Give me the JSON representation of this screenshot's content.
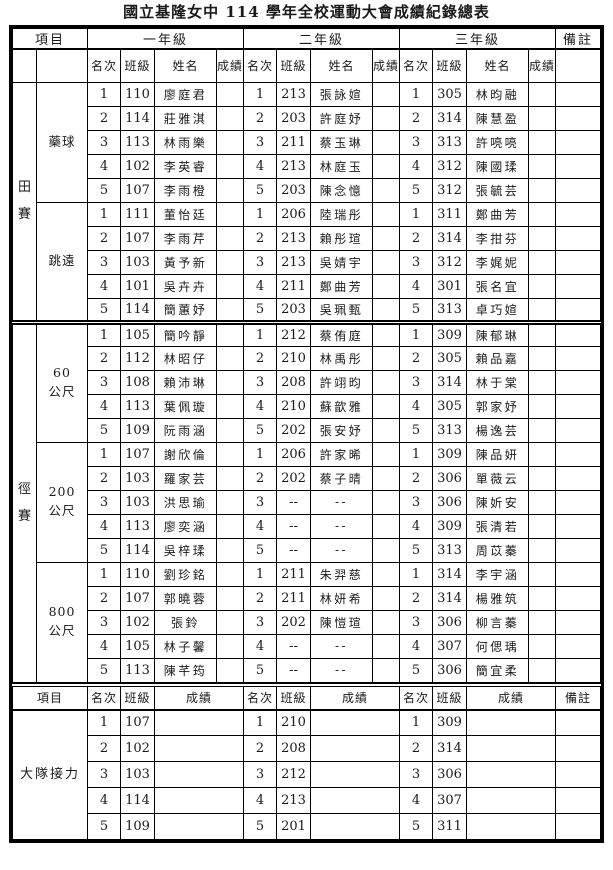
{
  "title": "國立基隆女中 114 學年全校運動大會成績紀錄總表",
  "header": {
    "item": "項目",
    "grades": [
      "一年級",
      "二年級",
      "三年級"
    ],
    "remark": "備註",
    "sub": [
      "名次",
      "班級",
      "姓名",
      "成績"
    ]
  },
  "categories": [
    {
      "label": "田賽",
      "events": [
        0,
        1
      ]
    },
    {
      "label": "徑賽",
      "events": [
        2,
        3,
        4
      ]
    }
  ],
  "events": [
    {
      "name": "藥球",
      "rows": [
        {
          "rank": "1",
          "g1": [
            "110",
            "廖庭君"
          ],
          "g2": [
            "213",
            "張詠媗"
          ],
          "g3": [
            "305",
            "林昀融"
          ]
        },
        {
          "rank": "2",
          "g1": [
            "114",
            "莊雅淇"
          ],
          "g2": [
            "203",
            "許庭妤"
          ],
          "g3": [
            "314",
            "陳慧盈"
          ]
        },
        {
          "rank": "3",
          "g1": [
            "113",
            "林雨樂"
          ],
          "g2": [
            "211",
            "蔡玉琳"
          ],
          "g3": [
            "313",
            "許喨喨"
          ]
        },
        {
          "rank": "4",
          "g1": [
            "102",
            "李英睿"
          ],
          "g2": [
            "213",
            "林庭玉"
          ],
          "g3": [
            "312",
            "陳國瑈"
          ]
        },
        {
          "rank": "5",
          "g1": [
            "107",
            "李雨橙"
          ],
          "g2": [
            "203",
            "陳念憶"
          ],
          "g3": [
            "312",
            "張毓芸"
          ]
        }
      ]
    },
    {
      "name": "跳遠",
      "rows": [
        {
          "rank": "1",
          "g1": [
            "111",
            "董怡廷"
          ],
          "g2": [
            "206",
            "陸瑞彤"
          ],
          "g3": [
            "311",
            "鄭曲芳"
          ]
        },
        {
          "rank": "2",
          "g1": [
            "107",
            "李雨芹"
          ],
          "g2": [
            "213",
            "賴彤瑄"
          ],
          "g3": [
            "314",
            "李拑芬"
          ]
        },
        {
          "rank": "3",
          "g1": [
            "103",
            "黃予新"
          ],
          "g2": [
            "213",
            "吳婧宇"
          ],
          "g3": [
            "312",
            "李娓妮"
          ]
        },
        {
          "rank": "4",
          "g1": [
            "101",
            "吳卉卉"
          ],
          "g2": [
            "211",
            "鄭曲芳"
          ],
          "g3": [
            "301",
            "張名宜"
          ]
        },
        {
          "rank": "5",
          "g1": [
            "114",
            "簡蕙妤"
          ],
          "g2": [
            "203",
            "吳珮甄"
          ],
          "g3": [
            "313",
            "卓巧媗"
          ]
        }
      ]
    },
    {
      "name": "60\n公尺",
      "rows": [
        {
          "rank": "1",
          "g1": [
            "105",
            "簡吟靜"
          ],
          "g2": [
            "212",
            "蔡侑庭"
          ],
          "g3": [
            "309",
            "陳郁琳"
          ]
        },
        {
          "rank": "2",
          "g1": [
            "112",
            "林昭仔"
          ],
          "g2": [
            "210",
            "林禹彤"
          ],
          "g3": [
            "305",
            "賴品嘉"
          ]
        },
        {
          "rank": "3",
          "g1": [
            "108",
            "賴沛琳"
          ],
          "g2": [
            "208",
            "許翊昀"
          ],
          "g3": [
            "314",
            "林于棠"
          ]
        },
        {
          "rank": "4",
          "g1": [
            "113",
            "葉佩璇"
          ],
          "g2": [
            "210",
            "蘇歆雅"
          ],
          "g3": [
            "305",
            "郭家妤"
          ]
        },
        {
          "rank": "5",
          "g1": [
            "109",
            "阮雨涵"
          ],
          "g2": [
            "202",
            "張安妤"
          ],
          "g3": [
            "313",
            "楊逸芸"
          ]
        }
      ]
    },
    {
      "name": "200\n公尺",
      "rows": [
        {
          "rank": "1",
          "g1": [
            "107",
            "謝欣倫"
          ],
          "g2": [
            "206",
            "許家晞"
          ],
          "g3": [
            "309",
            "陳品妍"
          ]
        },
        {
          "rank": "2",
          "g1": [
            "103",
            "羅家芸"
          ],
          "g2": [
            "202",
            "蔡子晴"
          ],
          "g3": [
            "306",
            "單薇云"
          ]
        },
        {
          "rank": "3",
          "g1": [
            "103",
            "洪思瑜"
          ],
          "g2": [
            "--",
            "--"
          ],
          "g3": [
            "306",
            "陳妡安"
          ]
        },
        {
          "rank": "4",
          "g1": [
            "113",
            "廖奕涵"
          ],
          "g2": [
            "--",
            "--"
          ],
          "g3": [
            "309",
            "張清若"
          ]
        },
        {
          "rank": "5",
          "g1": [
            "114",
            "吳梓瑈"
          ],
          "g2": [
            "--",
            "--"
          ],
          "g3": [
            "313",
            "周苡蓁"
          ]
        }
      ]
    },
    {
      "name": "800\n公尺",
      "rows": [
        {
          "rank": "1",
          "g1": [
            "110",
            "劉珍銘"
          ],
          "g2": [
            "211",
            "朱羿慈"
          ],
          "g3": [
            "314",
            "李宇涵"
          ]
        },
        {
          "rank": "2",
          "g1": [
            "107",
            "郭曉蓉"
          ],
          "g2": [
            "211",
            "林妍希"
          ],
          "g3": [
            "314",
            "楊雅筑"
          ]
        },
        {
          "rank": "3",
          "g1": [
            "102",
            "張鈴"
          ],
          "g2": [
            "202",
            "陳愷瑄"
          ],
          "g3": [
            "306",
            "柳言蓁"
          ]
        },
        {
          "rank": "4",
          "g1": [
            "105",
            "林子馨"
          ],
          "g2": [
            "--",
            "--"
          ],
          "g3": [
            "307",
            "何偲瑀"
          ]
        },
        {
          "rank": "5",
          "g1": [
            "113",
            "陳芊筠"
          ],
          "g2": [
            "--",
            "--"
          ],
          "g3": [
            "306",
            "簡宜柔"
          ]
        }
      ]
    }
  ],
  "relay": {
    "name": "大隊接力",
    "header": {
      "item": "項目",
      "sub": [
        "名次",
        "班級",
        "成績"
      ],
      "remark": "備註"
    },
    "rows": [
      {
        "rank": "1",
        "g1": "107",
        "g2": "210",
        "g3": "309"
      },
      {
        "rank": "2",
        "g1": "102",
        "g2": "208",
        "g3": "314"
      },
      {
        "rank": "3",
        "g1": "103",
        "g2": "212",
        "g3": "306"
      },
      {
        "rank": "4",
        "g1": "114",
        "g2": "213",
        "g3": "307"
      },
      {
        "rank": "5",
        "g1": "109",
        "g2": "201",
        "g3": "311"
      }
    ]
  }
}
